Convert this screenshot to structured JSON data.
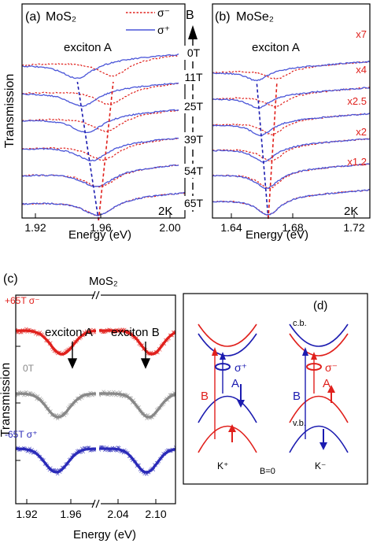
{
  "colors": {
    "sigma_minus": "#e0201c",
    "sigma_plus": "#4a55d8",
    "zero_field": "#888888",
    "band_k_plus_red": "#e0201c",
    "band_blue": "#1c1cb0"
  },
  "chart_data": [
    {
      "panel": "(a)",
      "type": "line",
      "title": "MoS₂",
      "xlabel": "Energy (eV)",
      "ylabel": "Transmission",
      "xlim": [
        1.9,
        2.0
      ],
      "xticks": [
        "1.92",
        "1.96",
        "2.00"
      ],
      "annotation": "exciton A",
      "temperature": "2K",
      "legend": [
        "σ⁻",
        "σ⁺"
      ],
      "legend_position": "top-right",
      "series": [
        {
          "name": "σ⁻",
          "style": "dotted"
        },
        {
          "name": "σ⁺",
          "style": "solid"
        }
      ],
      "field_labels": [
        "65T",
        "54T",
        "39T",
        "25T",
        "11T",
        "0T"
      ],
      "dip_minima_sigma_plus": [
        {
          "B": 0,
          "E": 1.947
        },
        {
          "B": 11,
          "E": 1.946
        },
        {
          "B": 25,
          "E": 1.943
        },
        {
          "B": 39,
          "E": 1.94
        },
        {
          "B": 54,
          "E": 1.937
        },
        {
          "B": 65,
          "E": 1.934
        }
      ],
      "dip_minima_sigma_minus": [
        {
          "B": 0,
          "E": 1.947
        },
        {
          "B": 11,
          "E": 1.948
        },
        {
          "B": 25,
          "E": 1.95
        },
        {
          "B": 39,
          "E": 1.952
        },
        {
          "B": 54,
          "E": 1.954
        },
        {
          "B": 65,
          "E": 1.956
        }
      ]
    },
    {
      "panel": "(b)",
      "type": "line",
      "title": "MoSe₂",
      "xlabel": "Energy (eV)",
      "xlim": [
        1.62,
        1.73
      ],
      "xticks": [
        "1.64",
        "1.68",
        "1.72"
      ],
      "annotation": "exciton A",
      "temperature": "2K",
      "axis_marker": "B",
      "scale_factors": [
        "x7",
        "x4",
        "x2.5",
        "x2",
        "x1.2"
      ],
      "dip_minima_sigma_plus": [
        {
          "B": 0,
          "E": 1.659
        },
        {
          "B": 11,
          "E": 1.658
        },
        {
          "B": 25,
          "E": 1.656
        },
        {
          "B": 39,
          "E": 1.654
        },
        {
          "B": 54,
          "E": 1.652
        },
        {
          "B": 65,
          "E": 1.651
        }
      ],
      "dip_minima_sigma_minus": [
        {
          "B": 0,
          "E": 1.659
        },
        {
          "B": 11,
          "E": 1.66
        },
        {
          "B": 25,
          "E": 1.661
        },
        {
          "B": 39,
          "E": 1.662
        },
        {
          "B": 54,
          "E": 1.664
        },
        {
          "B": 65,
          "E": 1.665
        }
      ]
    },
    {
      "panel": "(c)",
      "type": "scatter",
      "title": "MoS₂",
      "xlabel": "Energy (eV)",
      "ylabel": "Transmission",
      "xticks": [
        "1.92",
        "1.96",
        "2.04",
        "2.10"
      ],
      "broken_axis": true,
      "annotations": [
        "exciton A",
        "exciton B"
      ],
      "series": [
        {
          "name": "+65T σ⁻",
          "dip_A": 1.954,
          "dip_B": 2.094
        },
        {
          "name": "0T",
          "dip_A": 1.95,
          "dip_B": 2.09
        },
        {
          "name": "-65T σ⁺",
          "dip_A": 1.948,
          "dip_B": 2.087
        }
      ]
    }
  ],
  "diagram_d": {
    "panel": "(d)",
    "cb_label": "c.b.",
    "vb_label": "v.b.",
    "valley_k_plus": "K⁺",
    "valley_k_minus": "K⁻",
    "field": "B=0",
    "transition_a": "A",
    "transition_b": "B",
    "sigma_plus": "σ⁺",
    "sigma_minus": "σ⁻"
  }
}
